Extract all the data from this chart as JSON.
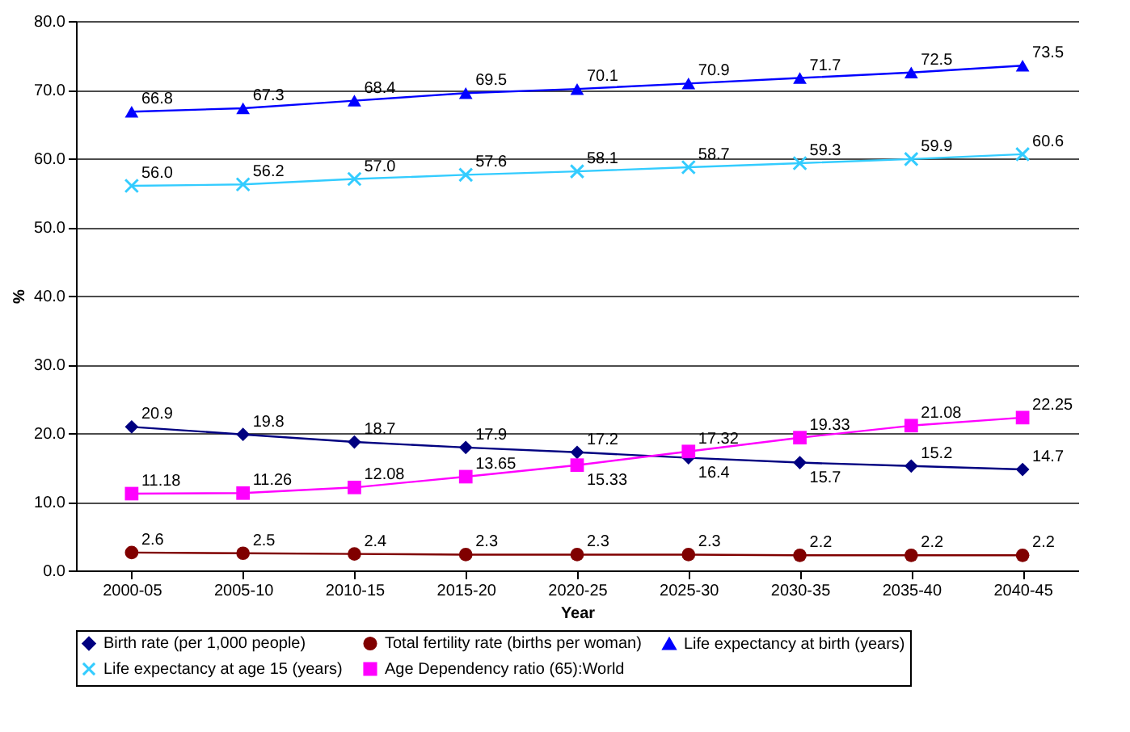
{
  "chart_data": {
    "type": "line",
    "xlabel": "Year",
    "ylabel": "%",
    "categories": [
      "2000-05",
      "2005-10",
      "2010-15",
      "2015-20",
      "2020-25",
      "2025-30",
      "2030-35",
      "2035-40",
      "2040-45"
    ],
    "series": [
      {
        "name": "Birth rate (per 1,000 people)",
        "color": "#000080",
        "marker": "diamond",
        "values": [
          20.9,
          19.8,
          18.7,
          17.9,
          17.2,
          16.4,
          15.7,
          15.2,
          14.7
        ],
        "value_labels": [
          "20.9",
          "19.8",
          "18.7",
          "17.9",
          "17.2",
          "16.4",
          "15.7",
          "15.2",
          "14.7"
        ]
      },
      {
        "name": "Total fertility rate (births per woman)",
        "color": "#800000",
        "marker": "circle",
        "values": [
          2.6,
          2.5,
          2.4,
          2.3,
          2.3,
          2.3,
          2.2,
          2.2,
          2.2
        ],
        "value_labels": [
          "2.6",
          "2.5",
          "2.4",
          "2.3",
          "2.3",
          "2.3",
          "2.2",
          "2.2",
          "2.2"
        ]
      },
      {
        "name": "Life expectancy at birth (years)",
        "color": "#0000ff",
        "marker": "triangle",
        "values": [
          66.8,
          67.3,
          68.4,
          69.5,
          70.1,
          70.9,
          71.7,
          72.5,
          73.5
        ],
        "value_labels": [
          "66.8",
          "67.3",
          "68.4",
          "69.5",
          "70.1",
          "70.9",
          "71.7",
          "72.5",
          "73.5"
        ]
      },
      {
        "name": "Life expectancy at age 15 (years)",
        "color": "#33ccff",
        "marker": "cross",
        "values": [
          56.0,
          56.2,
          57.0,
          57.6,
          58.1,
          58.7,
          59.3,
          59.9,
          60.6
        ],
        "value_labels": [
          "56.0",
          "56.2",
          "57.0",
          "57.6",
          "58.1",
          "58.7",
          "59.3",
          "59.9",
          "60.6"
        ]
      },
      {
        "name": "Age Dependency ratio (65):World",
        "color": "#ff00ff",
        "marker": "square",
        "values": [
          11.18,
          11.26,
          12.08,
          13.65,
          15.33,
          17.32,
          19.33,
          21.08,
          22.25
        ],
        "value_labels": [
          "11.18",
          "11.26",
          "12.08",
          "13.65",
          "15.33",
          "17.32",
          "19.33",
          "21.08",
          "22.25"
        ]
      }
    ],
    "ylim": [
      0,
      80
    ],
    "yticks": [
      {
        "value": 0,
        "label": "0.0"
      },
      {
        "value": 10,
        "label": "10.0"
      },
      {
        "value": 20,
        "label": "20.0"
      },
      {
        "value": 30,
        "label": "30.0"
      },
      {
        "value": 40,
        "label": "40.0"
      },
      {
        "value": 50,
        "label": "50.0"
      },
      {
        "value": 60,
        "label": "60.0"
      },
      {
        "value": 70,
        "label": "70.0"
      },
      {
        "value": 80,
        "label": "80.0"
      }
    ],
    "grid": "y",
    "legend": "bottom"
  }
}
